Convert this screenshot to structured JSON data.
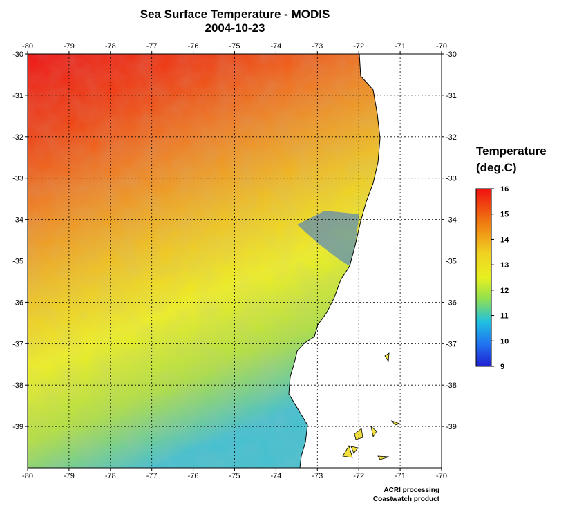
{
  "map": {
    "title": "Sea Surface Temperature - MODIS",
    "date": "2004-10-23",
    "lon_ticks": [
      "-80",
      "-79",
      "-78",
      "-77",
      "-76",
      "-75",
      "-74",
      "-73",
      "-72",
      "-71",
      "-70"
    ],
    "lat_ticks": [
      "-30",
      "-31",
      "-32",
      "-33",
      "-34",
      "-35",
      "-36",
      "-37",
      "-38",
      "-39"
    ],
    "bottom_lat_label": "",
    "extent": {
      "lon": [
        -80,
        -70
      ],
      "lat": [
        -40,
        -30
      ]
    }
  },
  "legend": {
    "title_line1": "Temperature",
    "title_line2": "(deg.C)",
    "ticks": [
      "16",
      "15",
      "14",
      "13",
      "12",
      "11",
      "10",
      "9"
    ],
    "range": [
      9,
      16
    ],
    "colors": {
      "low": "#2020d0",
      "mid_low": "#20b0f0",
      "mid": "#f0f020",
      "mid_high": "#f09020",
      "high": "#f01010"
    }
  },
  "credits": {
    "line1": "ACRI processing",
    "line2": "Coastwatch product"
  },
  "colors": {
    "land": "#ffffff",
    "coast": "#000000",
    "grid": "#000000"
  }
}
